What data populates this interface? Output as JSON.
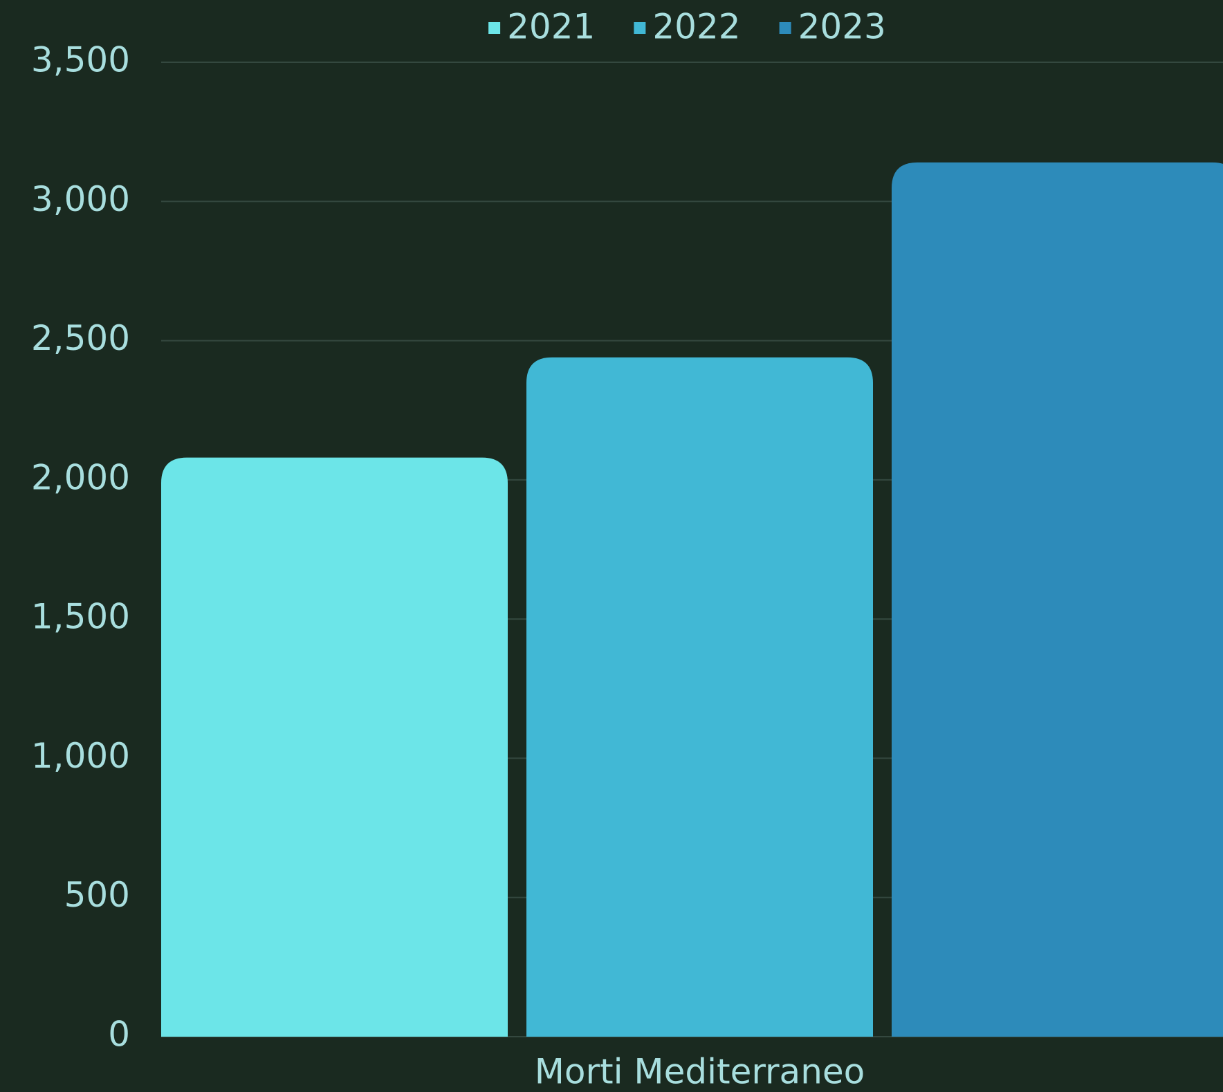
{
  "chart_data": {
    "type": "bar",
    "categories": [
      "Morti Mediterraneo"
    ],
    "series": [
      {
        "name": "2021",
        "color": "#6ce5e8",
        "values": [
          2080
        ]
      },
      {
        "name": "2022",
        "color": "#41b8d5",
        "values": [
          2440
        ]
      },
      {
        "name": "2023",
        "color": "#2d8bba",
        "values": [
          3140
        ]
      }
    ],
    "ylim": [
      0,
      3500
    ],
    "yticks": [
      0,
      500,
      {
        "value": 1000,
        "label": "1,000"
      },
      {
        "value": 1500,
        "label": "1,500"
      },
      {
        "value": 2000,
        "label": "2,000"
      },
      {
        "value": 2500,
        "label": "2,500"
      },
      {
        "value": 3000,
        "label": "3,000"
      },
      {
        "value": 3500,
        "label": "3,500"
      }
    ],
    "grid": true,
    "legend": "top"
  }
}
